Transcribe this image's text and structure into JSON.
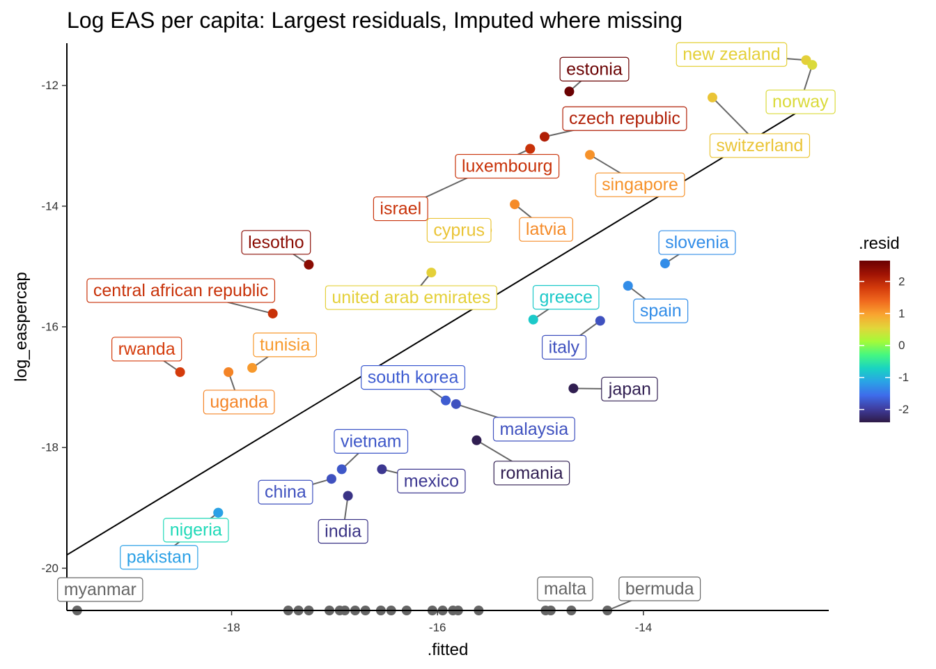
{
  "chart_data": {
    "type": "scatter",
    "title": "Log EAS per capita: Largest residuals, Imputed where missing",
    "xlabel": ".fitted",
    "ylabel": "log_easpercap",
    "xlim": [
      -19.6,
      -12.2
    ],
    "ylim": [
      -20.7,
      -11.3
    ],
    "x_ticks": [
      -18,
      -16,
      -14
    ],
    "y_ticks": [
      -12,
      -14,
      -16,
      -18,
      -20
    ],
    "x_tick_labels": [
      "-18",
      "-16",
      "-14"
    ],
    "y_tick_labels": [
      "-12",
      "-14",
      "-16",
      "-18",
      "-20"
    ],
    "fit_line": {
      "x": [
        -19.6,
        -12.2
      ],
      "y": [
        -19.78,
        -12.13
      ]
    },
    "grid": false,
    "legend": {
      "title": ".resid",
      "placement": "right",
      "ticks": [
        2,
        1,
        0,
        -1,
        -2
      ],
      "tick_labels": [
        "2",
        "1",
        "0",
        "-1",
        "-2"
      ],
      "range": [
        -2.4,
        2.65
      ]
    },
    "colors": {
      "imputed": "#666666",
      "fit_line": "#000000",
      "scale": [
        "#2e1a46",
        "#3f3d9f",
        "#3e6cea",
        "#2aa2e6",
        "#19d3c2",
        "#45f781",
        "#a4fb39",
        "#e1d63a",
        "#f9a530",
        "#f0691e",
        "#d33a0b",
        "#a01304",
        "#6a0102"
      ]
    },
    "points": [
      {
        "label": "estonia",
        "x": -14.72,
        "y": -12.1,
        "resid": 2.65
      },
      {
        "label": "czech republic",
        "x": -14.96,
        "y": -12.85,
        "resid": 2.1
      },
      {
        "label": "luxembourg",
        "x": -15.1,
        "y": -13.05,
        "resid": 1.9
      },
      {
        "label": "israel",
        "x": -15.1,
        "y": -13.05,
        "resid": 1.9
      },
      {
        "label": "new zealand",
        "x": -12.42,
        "y": -11.58,
        "resid": 0.6
      },
      {
        "label": "norway",
        "x": -12.36,
        "y": -11.66,
        "resid": 0.5
      },
      {
        "label": "switzerland",
        "x": -13.33,
        "y": -12.2,
        "resid": 0.7
      },
      {
        "label": "singapore",
        "x": -14.52,
        "y": -13.15,
        "resid": 1.1
      },
      {
        "label": "latvia",
        "x": -15.25,
        "y": -13.97,
        "resid": 1.15
      },
      {
        "label": "cyprus",
        "x": -15.52,
        "y": -14.4,
        "resid": 0.7
      },
      {
        "label": "united arab emirates",
        "x": -16.06,
        "y": -15.1,
        "resid": 0.6
      },
      {
        "label": "lesotho",
        "x": -17.25,
        "y": -14.97,
        "resid": 2.4
      },
      {
        "label": "central african republic",
        "x": -17.6,
        "y": -15.78,
        "resid": 1.9
      },
      {
        "label": "rwanda",
        "x": -18.5,
        "y": -16.75,
        "resid": 1.8
      },
      {
        "label": "tunisia",
        "x": -17.8,
        "y": -16.68,
        "resid": 1.05
      },
      {
        "label": "uganda",
        "x": -18.03,
        "y": -16.75,
        "resid": 1.2
      },
      {
        "label": "slovenia",
        "x": -13.79,
        "y": -14.95,
        "resid": -1.3
      },
      {
        "label": "spain",
        "x": -14.15,
        "y": -15.32,
        "resid": -1.3
      },
      {
        "label": "greece",
        "x": -15.07,
        "y": -15.88,
        "resid": -0.8
      },
      {
        "label": "italy",
        "x": -14.42,
        "y": -15.9,
        "resid": -1.8
      },
      {
        "label": "south korea",
        "x": -15.92,
        "y": -17.22,
        "resid": -1.7
      },
      {
        "label": "malaysia",
        "x": -15.82,
        "y": -17.28,
        "resid": -1.8
      },
      {
        "label": "japan",
        "x": -14.68,
        "y": -17.02,
        "resid": -2.35
      },
      {
        "label": "romania",
        "x": -15.62,
        "y": -17.88,
        "resid": -2.35
      },
      {
        "label": "vietnam",
        "x": -16.93,
        "y": -18.36,
        "resid": -1.75
      },
      {
        "label": "china",
        "x": -17.03,
        "y": -18.52,
        "resid": -1.8
      },
      {
        "label": "mexico",
        "x": -16.54,
        "y": -18.36,
        "resid": -2.05
      },
      {
        "label": "india",
        "x": -16.87,
        "y": -18.8,
        "resid": -2.1
      },
      {
        "label": "nigeria",
        "x": -18.13,
        "y": -19.08,
        "resid": -0.65
      },
      {
        "label": "pakistan",
        "x": -18.13,
        "y": -19.08,
        "resid": -1.15
      },
      {
        "label": "myanmar",
        "x": -19.5,
        "y": -20.7,
        "imputed": true
      },
      {
        "label": "malta",
        "x": -14.7,
        "y": -20.7,
        "imputed": true
      },
      {
        "label": "bermuda",
        "x": -14.35,
        "y": -20.7,
        "imputed": true
      }
    ],
    "imputed_points_x": [
      -17.45,
      -17.35,
      -17.25,
      -17.05,
      -16.95,
      -16.9,
      -16.8,
      -16.7,
      -16.55,
      -16.45,
      -16.3,
      -16.05,
      -15.95,
      -15.85,
      -15.8,
      -15.6,
      -14.95,
      -14.9
    ]
  }
}
